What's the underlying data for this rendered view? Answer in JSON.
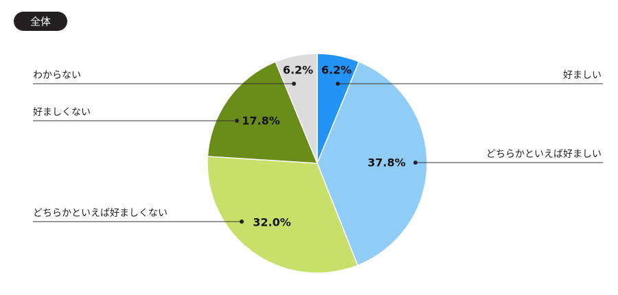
{
  "chart_data": {
    "type": "pie",
    "title": "全体",
    "categories": [
      "好ましい",
      "どちらかといえば好ましい",
      "どちらかといえば好ましくない",
      "好ましくない",
      "わからない"
    ],
    "values": [
      6.2,
      37.8,
      32.0,
      17.8,
      6.2
    ],
    "value_labels": [
      "6.2%",
      "37.8%",
      "32.0%",
      "17.8%",
      "6.2%"
    ],
    "colors": [
      "#2393f5",
      "#8fcdf7",
      "#c8df6a",
      "#6a8d19",
      "#dcdcdc"
    ]
  }
}
